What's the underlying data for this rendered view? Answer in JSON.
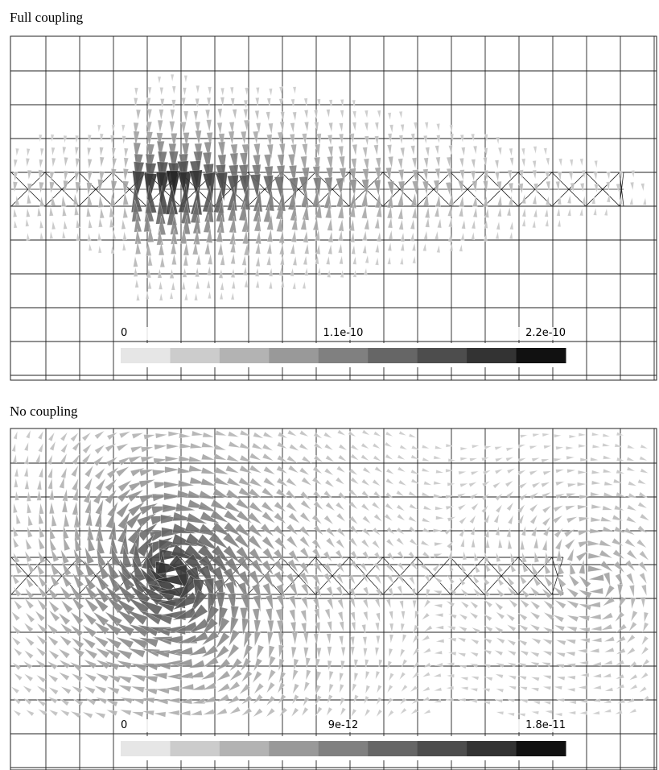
{
  "panels": [
    {
      "title": "Full coupling",
      "colorbar": {
        "lim": [
          0,
          2.2e-10
        ],
        "ticks": [
          0,
          1.1e-10,
          2.2e-10
        ],
        "colors": [
          "#e6e6e6",
          "#cccccc",
          "#b3b3b3",
          "#999999",
          "#808080",
          "#666666",
          "#4d4d4d",
          "#333333",
          "#111111"
        ]
      }
    },
    {
      "title": "No coupling",
      "colorbar": {
        "lim": [
          0,
          1.8e-11
        ],
        "ticks": [
          0,
          9e-12,
          1.8e-11
        ],
        "colors": [
          "#e6e6e6",
          "#cccccc",
          "#b3b3b3",
          "#999999",
          "#808080",
          "#666666",
          "#4d4d4d",
          "#333333",
          "#111111"
        ]
      }
    }
  ]
}
